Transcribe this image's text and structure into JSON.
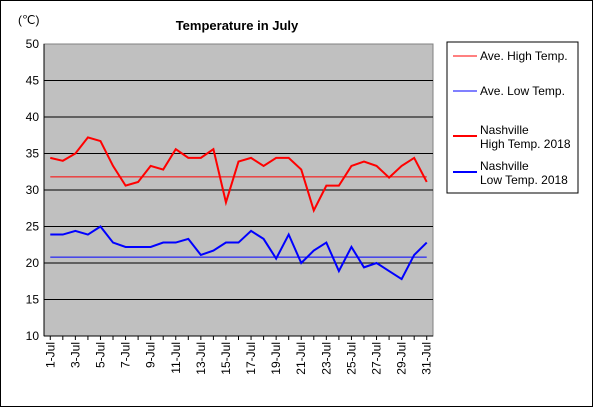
{
  "chart_data": {
    "type": "line",
    "title": "Temperature in July",
    "ylabel": "(℃)",
    "xlabel": "",
    "ylim": [
      10,
      50
    ],
    "yticks": [
      10,
      15,
      20,
      25,
      30,
      35,
      40,
      45,
      50
    ],
    "x": [
      "1-Jul",
      "2-Jul",
      "3-Jul",
      "4-Jul",
      "5-Jul",
      "6-Jul",
      "7-Jul",
      "8-Jul",
      "9-Jul",
      "10-Jul",
      "11-Jul",
      "12-Jul",
      "13-Jul",
      "14-Jul",
      "15-Jul",
      "16-Jul",
      "17-Jul",
      "18-Jul",
      "19-Jul",
      "20-Jul",
      "21-Jul",
      "22-Jul",
      "23-Jul",
      "24-Jul",
      "25-Jul",
      "26-Jul",
      "27-Jul",
      "28-Jul",
      "29-Jul",
      "30-Jul",
      "31-Jul"
    ],
    "xtick_labels": [
      "1-Jul",
      "3-Jul",
      "5-Jul",
      "7-Jul",
      "9-Jul",
      "11-Jul",
      "13-Jul",
      "15-Jul",
      "17-Jul",
      "19-Jul",
      "21-Jul",
      "23-Jul",
      "25-Jul",
      "27-Jul",
      "29-Jul",
      "31-Jul"
    ],
    "grid": true,
    "legend_position": "right",
    "plot_background": "#c0c0c0",
    "series": [
      {
        "name": "Ave. High Temp.",
        "color": "#ff0000",
        "width": 1,
        "values": [
          31.8,
          31.8,
          31.8,
          31.8,
          31.8,
          31.8,
          31.8,
          31.8,
          31.8,
          31.8,
          31.8,
          31.8,
          31.8,
          31.8,
          31.8,
          31.8,
          31.8,
          31.8,
          31.8,
          31.8,
          31.8,
          31.8,
          31.8,
          31.8,
          31.8,
          31.8,
          31.8,
          31.8,
          31.8,
          31.8,
          31.8
        ]
      },
      {
        "name": "Ave. Low Temp.",
        "color": "#0000ff",
        "width": 1,
        "values": [
          20.8,
          20.8,
          20.8,
          20.8,
          20.8,
          20.8,
          20.8,
          20.8,
          20.8,
          20.8,
          20.8,
          20.8,
          20.8,
          20.8,
          20.8,
          20.8,
          20.8,
          20.8,
          20.8,
          20.8,
          20.8,
          20.8,
          20.8,
          20.8,
          20.8,
          20.8,
          20.8,
          20.8,
          20.8,
          20.8,
          20.8
        ]
      },
      {
        "name": "Nashville\nHigh Temp. 2018",
        "color": "#ff0000",
        "width": 2,
        "values": [
          34.4,
          34.0,
          35.0,
          37.2,
          36.7,
          33.3,
          30.6,
          31.1,
          33.3,
          32.8,
          35.6,
          34.4,
          34.4,
          35.6,
          28.3,
          33.9,
          34.4,
          33.3,
          34.4,
          34.4,
          32.8,
          27.2,
          30.6,
          30.6,
          33.3,
          33.9,
          33.3,
          31.7,
          33.3,
          34.4,
          31.1
        ]
      },
      {
        "name": "Nashville\nLow Temp. 2018",
        "color": "#0000ff",
        "width": 2,
        "values": [
          23.9,
          23.9,
          24.4,
          23.9,
          25.0,
          22.8,
          22.2,
          22.2,
          22.2,
          22.8,
          22.8,
          23.3,
          21.1,
          21.7,
          22.8,
          22.8,
          24.4,
          23.3,
          20.6,
          23.9,
          20.0,
          21.7,
          22.8,
          18.9,
          22.2,
          19.4,
          20.0,
          18.9,
          17.8,
          21.1,
          22.8
        ]
      }
    ]
  }
}
